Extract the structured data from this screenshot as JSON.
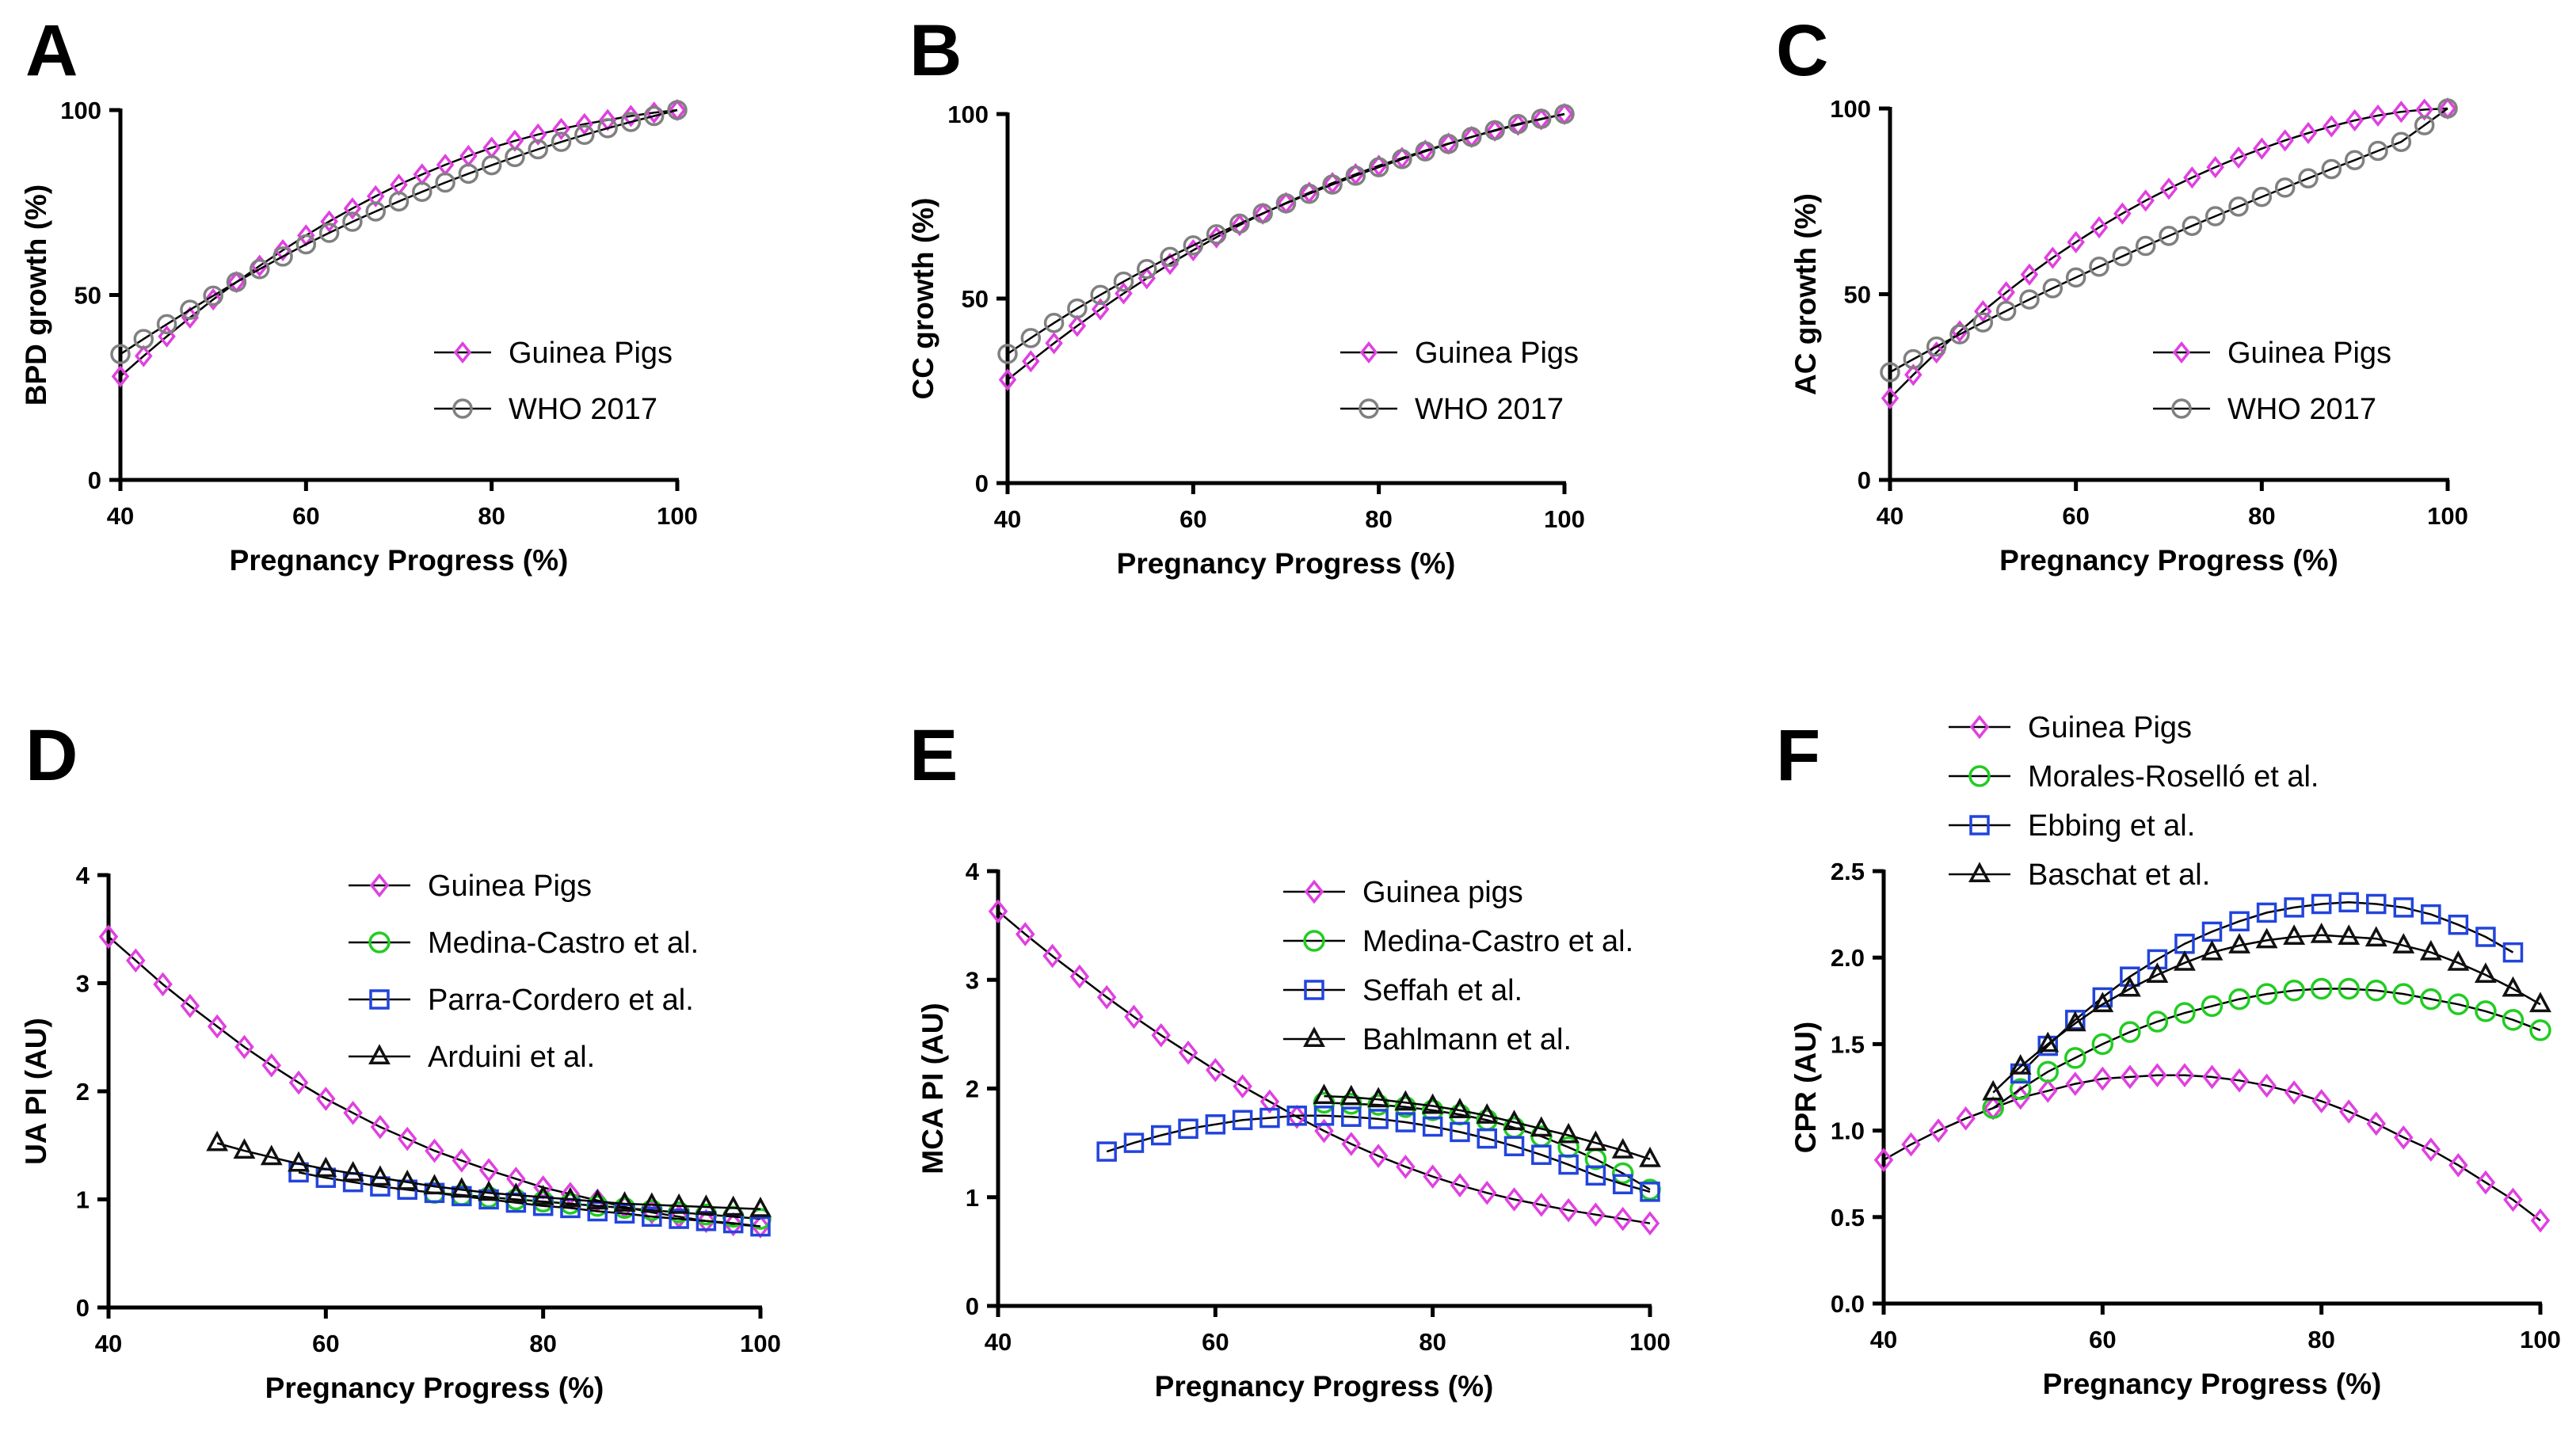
{
  "chart_data": [
    {
      "panel": "A",
      "type": "line",
      "xlabel": "Pregnancy Progress (%)",
      "ylabel": "BPD growth (%)",
      "xlim": [
        40,
        100
      ],
      "ylim": [
        0,
        100
      ],
      "xticks": [
        40,
        60,
        80,
        100
      ],
      "yticks": [
        0,
        50,
        100
      ],
      "legend_position": "center-right",
      "series": [
        {
          "name": "Guinea Pigs",
          "marker": "diamond",
          "color": "#e040e0",
          "size": 9,
          "x": [
            40,
            42.5,
            45,
            47.5,
            50,
            52.5,
            55,
            57.5,
            60,
            62.5,
            65,
            67.5,
            70,
            72.5,
            75,
            77.5,
            80,
            82.5,
            85,
            87.5,
            90,
            92.5,
            95,
            97.5,
            100
          ],
          "y": [
            28,
            33.5,
            38.8,
            43.9,
            48.8,
            53.5,
            57.9,
            62.1,
            66.1,
            69.9,
            73.4,
            76.7,
            79.8,
            82.6,
            85.2,
            87.6,
            89.8,
            91.7,
            93.4,
            94.9,
            96.2,
            97.3,
            98.4,
            99.3,
            100
          ]
        },
        {
          "name": "WHO 2017",
          "marker": "circle",
          "color": "#808080",
          "size": 11,
          "x": [
            40,
            42.5,
            45,
            47.5,
            50,
            52.5,
            55,
            57.5,
            60,
            62.5,
            65,
            67.5,
            70,
            72.5,
            75,
            77.5,
            80,
            82.5,
            85,
            87.5,
            90,
            92.5,
            95,
            97.5,
            100
          ],
          "y": [
            34,
            38.1,
            42.1,
            46,
            49.8,
            53.5,
            57,
            60.4,
            63.7,
            66.8,
            69.8,
            72.6,
            75.3,
            77.9,
            80.4,
            82.8,
            85.1,
            87.3,
            89.4,
            91.4,
            93.3,
            95.1,
            96.8,
            98.4,
            100
          ]
        }
      ]
    },
    {
      "panel": "B",
      "type": "line",
      "xlabel": "Pregnancy Progress (%)",
      "ylabel": "CC growth (%)",
      "xlim": [
        40,
        100
      ],
      "ylim": [
        0,
        100
      ],
      "xticks": [
        40,
        60,
        80,
        100
      ],
      "yticks": [
        0,
        50,
        100
      ],
      "legend_position": "center-right",
      "series": [
        {
          "name": "Guinea Pigs",
          "marker": "diamond",
          "color": "#e040e0",
          "size": 9,
          "x": [
            40,
            42.5,
            45,
            47.5,
            50,
            52.5,
            55,
            57.5,
            60,
            62.5,
            65,
            67.5,
            70,
            72.5,
            75,
            77.5,
            80,
            82.5,
            85,
            87.5,
            90,
            92.5,
            95,
            97.5,
            100
          ],
          "y": [
            28,
            33,
            37.9,
            42.6,
            47.1,
            51.4,
            55.5,
            59.4,
            63.1,
            66.6,
            69.9,
            73,
            75.9,
            78.7,
            81.3,
            83.7,
            86,
            88.1,
            90.1,
            92,
            93.8,
            95.5,
            97.1,
            98.6,
            100
          ]
        },
        {
          "name": "WHO 2017",
          "marker": "circle",
          "color": "#808080",
          "size": 11,
          "x": [
            40,
            42.5,
            45,
            47.5,
            50,
            52.5,
            55,
            57.5,
            60,
            62.5,
            65,
            67.5,
            70,
            72.5,
            75,
            77.5,
            80,
            82.5,
            85,
            87.5,
            90,
            92.5,
            95,
            97.5,
            100
          ],
          "y": [
            35,
            39.3,
            43.4,
            47.3,
            51,
            54.6,
            58,
            61.3,
            64.4,
            67.4,
            70.3,
            73.1,
            75.8,
            78.4,
            80.9,
            83.3,
            85.6,
            87.8,
            89.9,
            91.9,
            93.8,
            95.6,
            97.3,
            98.7,
            100
          ]
        }
      ]
    },
    {
      "panel": "C",
      "type": "line",
      "xlabel": "Pregnancy Progress (%)",
      "ylabel": "AC growth (%)",
      "xlim": [
        40,
        100
      ],
      "ylim": [
        0,
        100
      ],
      "xticks": [
        40,
        60,
        80,
        100
      ],
      "yticks": [
        0,
        50,
        100
      ],
      "legend_position": "center-right",
      "series": [
        {
          "name": "Guinea Pigs",
          "marker": "diamond",
          "color": "#e040e0",
          "size": 9,
          "x": [
            40,
            42.5,
            45,
            47.5,
            50,
            52.5,
            55,
            57.5,
            60,
            62.5,
            65,
            67.5,
            70,
            72.5,
            75,
            77.5,
            80,
            82.5,
            85,
            87.5,
            90,
            92.5,
            95,
            97.5,
            100
          ],
          "y": [
            22,
            28.3,
            34.3,
            40,
            45.4,
            50.5,
            55.3,
            59.8,
            64,
            68,
            71.7,
            75.2,
            78.4,
            81.4,
            84.2,
            86.8,
            89.2,
            91.4,
            93.4,
            95.2,
            96.8,
            98.1,
            99.1,
            99.7,
            100
          ]
        },
        {
          "name": "WHO 2017",
          "marker": "circle",
          "color": "#808080",
          "size": 11,
          "x": [
            40,
            42.5,
            45,
            47.5,
            50,
            52.5,
            55,
            57.5,
            60,
            62.5,
            65,
            67.5,
            70,
            72.5,
            75,
            77.5,
            80,
            82.5,
            85,
            87.5,
            90,
            92.5,
            95,
            97.5,
            100
          ],
          "y": [
            29,
            32.5,
            35.9,
            39.2,
            42.4,
            45.5,
            48.6,
            51.6,
            54.5,
            57.4,
            60.2,
            63,
            65.7,
            68.4,
            71,
            73.6,
            76.2,
            78.7,
            81.2,
            83.7,
            86.1,
            88.6,
            91,
            95.5,
            100
          ]
        }
      ]
    },
    {
      "panel": "D",
      "type": "line",
      "xlabel": "Pregnancy Progress (%)",
      "ylabel": "UA PI (AU)",
      "xlim": [
        40,
        100
      ],
      "ylim": [
        0,
        4
      ],
      "xticks": [
        40,
        60,
        80,
        100
      ],
      "yticks": [
        0,
        1,
        2,
        3,
        4
      ],
      "legend_position": "top-right",
      "series": [
        {
          "name": "Guinea Pigs",
          "marker": "diamond",
          "color": "#e040e0",
          "size": 10,
          "x": [
            40,
            42.5,
            45,
            47.5,
            50,
            52.5,
            55,
            57.5,
            60,
            62.5,
            65,
            67.5,
            70,
            72.5,
            75,
            77.5,
            80,
            82.5,
            85,
            87.5,
            90,
            92.5,
            95,
            97.5,
            100
          ],
          "y": [
            3.43,
            3.21,
            2.99,
            2.79,
            2.6,
            2.41,
            2.24,
            2.08,
            1.93,
            1.8,
            1.67,
            1.56,
            1.45,
            1.36,
            1.27,
            1.19,
            1.11,
            1.05,
            0.99,
            0.93,
            0.88,
            0.84,
            0.8,
            0.77,
            0.75
          ]
        },
        {
          "name": "Medina-Castro et al.",
          "marker": "circle",
          "color": "#22cc22",
          "size": 12,
          "x": [
            70,
            72.5,
            75,
            77.5,
            80,
            82.5,
            85,
            87.5,
            90,
            92.5,
            95,
            97.5,
            100
          ],
          "y": [
            1.06,
            1.04,
            1.02,
            1,
            0.98,
            0.96,
            0.94,
            0.92,
            0.9,
            0.88,
            0.86,
            0.84,
            0.82
          ]
        },
        {
          "name": "Parra-Cordero et al.",
          "marker": "square",
          "color": "#2244dd",
          "size": 11,
          "x": [
            57.5,
            60,
            62.5,
            65,
            67.5,
            70,
            72.5,
            75,
            77.5,
            80,
            82.5,
            85,
            87.5,
            90,
            92.5,
            95,
            97.5,
            100
          ],
          "y": [
            1.25,
            1.2,
            1.16,
            1.12,
            1.09,
            1.06,
            1.03,
            1,
            0.97,
            0.94,
            0.92,
            0.89,
            0.87,
            0.84,
            0.82,
            0.8,
            0.78,
            0.75
          ]
        },
        {
          "name": "Arduini et al.",
          "marker": "triangle",
          "color": "#111111",
          "size": 11,
          "x": [
            50,
            52.5,
            55,
            57.5,
            60,
            62.5,
            65,
            67.5,
            70,
            72.5,
            75,
            77.5,
            80,
            82.5,
            85,
            87.5,
            90,
            92.5,
            95,
            97.5,
            100
          ],
          "y": [
            1.52,
            1.45,
            1.39,
            1.33,
            1.28,
            1.24,
            1.2,
            1.16,
            1.12,
            1.09,
            1.06,
            1.04,
            1.02,
            1,
            0.98,
            0.96,
            0.95,
            0.94,
            0.93,
            0.92,
            0.91
          ]
        }
      ]
    },
    {
      "panel": "E",
      "type": "line",
      "xlabel": "Pregnancy Progress (%)",
      "ylabel": "MCA PI (AU)",
      "xlim": [
        40,
        100
      ],
      "ylim": [
        0,
        4
      ],
      "xticks": [
        40,
        60,
        80,
        100
      ],
      "yticks": [
        0,
        1,
        2,
        3,
        4
      ],
      "legend_position": "top-right",
      "series": [
        {
          "name": "Guinea pigs",
          "marker": "diamond",
          "color": "#e040e0",
          "size": 10,
          "x": [
            40,
            42.5,
            45,
            47.5,
            50,
            52.5,
            55,
            57.5,
            60,
            62.5,
            65,
            67.5,
            70,
            72.5,
            75,
            77.5,
            80,
            82.5,
            85,
            87.5,
            90,
            92.5,
            95,
            97.5,
            100
          ],
          "y": [
            3.63,
            3.42,
            3.22,
            3.03,
            2.84,
            2.66,
            2.49,
            2.33,
            2.17,
            2.02,
            1.88,
            1.74,
            1.61,
            1.49,
            1.38,
            1.28,
            1.19,
            1.11,
            1.04,
            0.98,
            0.93,
            0.88,
            0.84,
            0.8,
            0.76
          ]
        },
        {
          "name": "Medina-Castro et al.",
          "marker": "circle",
          "color": "#22cc22",
          "size": 12,
          "x": [
            70,
            72.5,
            75,
            77.5,
            80,
            82.5,
            85,
            87.5,
            90,
            92.5,
            95,
            97.5,
            100
          ],
          "y": [
            1.87,
            1.86,
            1.85,
            1.83,
            1.8,
            1.76,
            1.71,
            1.64,
            1.56,
            1.46,
            1.35,
            1.22,
            1.07
          ]
        },
        {
          "name": "Seffah et al.",
          "marker": "square",
          "color": "#2244dd",
          "size": 11,
          "x": [
            50,
            52.5,
            55,
            57.5,
            60,
            62.5,
            65,
            67.5,
            70,
            72.5,
            75,
            77.5,
            80,
            82.5,
            85,
            87.5,
            90,
            92.5,
            95,
            97.5,
            100
          ],
          "y": [
            1.42,
            1.5,
            1.57,
            1.63,
            1.67,
            1.71,
            1.73,
            1.75,
            1.75,
            1.74,
            1.72,
            1.69,
            1.65,
            1.6,
            1.54,
            1.47,
            1.39,
            1.3,
            1.2,
            1.12,
            1.05
          ]
        },
        {
          "name": "Bahlmann et al.",
          "marker": "triangle",
          "color": "#111111",
          "size": 11,
          "x": [
            70,
            72.5,
            75,
            77.5,
            80,
            82.5,
            85,
            87.5,
            90,
            92.5,
            95,
            97.5,
            100
          ],
          "y": [
            1.93,
            1.92,
            1.9,
            1.87,
            1.84,
            1.8,
            1.75,
            1.69,
            1.63,
            1.57,
            1.5,
            1.43,
            1.35
          ]
        }
      ]
    },
    {
      "panel": "F",
      "type": "line",
      "xlabel": "Pregnancy Progress (%)",
      "ylabel": "CPR (AU)",
      "xlim": [
        40,
        100
      ],
      "ylim": [
        0,
        2.5
      ],
      "xticks": [
        40,
        60,
        80,
        100
      ],
      "yticks": [
        0.0,
        0.5,
        1.0,
        1.5,
        2.0,
        2.5
      ],
      "ytick_labels": [
        "0.0",
        "0.5",
        "1.0",
        "1.5",
        "2.0",
        "2.5"
      ],
      "legend_position": "top-left",
      "series": [
        {
          "name": "Guinea Pigs",
          "marker": "diamond",
          "color": "#e040e0",
          "size": 10,
          "x": [
            40,
            42.5,
            45,
            47.5,
            50,
            52.5,
            55,
            57.5,
            60,
            62.5,
            65,
            67.5,
            70,
            72.5,
            75,
            77.5,
            80,
            82.5,
            85,
            87.5,
            90,
            92.5,
            95,
            97.5,
            100
          ],
          "y": [
            0.83,
            0.92,
            1,
            1.07,
            1.13,
            1.19,
            1.23,
            1.27,
            1.3,
            1.31,
            1.32,
            1.32,
            1.31,
            1.29,
            1.26,
            1.22,
            1.17,
            1.11,
            1.04,
            0.96,
            0.89,
            0.8,
            0.7,
            0.6,
            0.48
          ]
        },
        {
          "name": "Morales-Roselló et al.",
          "marker": "circle",
          "color": "#22cc22",
          "size": 12,
          "x": [
            50,
            52.5,
            55,
            57.5,
            60,
            62.5,
            65,
            67.5,
            70,
            72.5,
            75,
            77.5,
            80,
            82.5,
            85,
            87.5,
            90,
            92.5,
            95,
            97.5,
            100
          ],
          "y": [
            1.13,
            1.24,
            1.34,
            1.42,
            1.5,
            1.57,
            1.63,
            1.68,
            1.72,
            1.76,
            1.79,
            1.81,
            1.82,
            1.82,
            1.81,
            1.79,
            1.76,
            1.73,
            1.69,
            1.64,
            1.58
          ]
        },
        {
          "name": "Ebbing et al.",
          "marker": "square",
          "color": "#2244dd",
          "size": 11,
          "x": [
            52.5,
            55,
            57.5,
            60,
            62.5,
            65,
            67.5,
            70,
            72.5,
            75,
            77.5,
            80,
            82.5,
            85,
            87.5,
            90,
            92.5,
            95,
            97.5
          ],
          "y": [
            1.33,
            1.49,
            1.64,
            1.77,
            1.89,
            1.99,
            2.08,
            2.15,
            2.21,
            2.26,
            2.29,
            2.31,
            2.32,
            2.31,
            2.29,
            2.25,
            2.19,
            2.12,
            2.03
          ]
        },
        {
          "name": "Baschat et al.",
          "marker": "triangle",
          "color": "#111111",
          "size": 11,
          "x": [
            50,
            52.5,
            55,
            57.5,
            60,
            62.5,
            65,
            67.5,
            70,
            72.5,
            75,
            77.5,
            80,
            82.5,
            85,
            87.5,
            90,
            92.5,
            95,
            97.5,
            100
          ],
          "y": [
            1.22,
            1.37,
            1.5,
            1.62,
            1.73,
            1.82,
            1.9,
            1.97,
            2.03,
            2.07,
            2.1,
            2.12,
            2.13,
            2.12,
            2.11,
            2.07,
            2.03,
            1.97,
            1.9,
            1.82,
            1.73
          ]
        }
      ]
    }
  ]
}
